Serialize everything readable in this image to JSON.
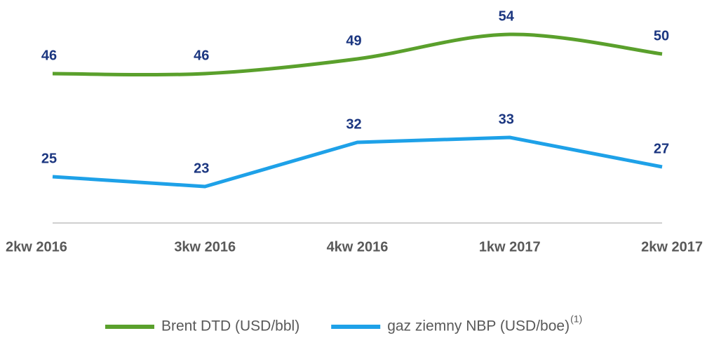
{
  "chart_data": {
    "type": "line",
    "categories": [
      "2kw 2016",
      "3kw 2016",
      "4kw 2016",
      "1kw 2017",
      "2kw 2017"
    ],
    "series": [
      {
        "name": "Brent DTD (USD/bbl)",
        "color": "#5aa02c",
        "smooth": true,
        "values": [
          46,
          46,
          49,
          54,
          50
        ]
      },
      {
        "name": "gaz ziemny NBP (USD/boe)",
        "footnote": "(1)",
        "color": "#1ea1e8",
        "smooth": false,
        "values": [
          25,
          23,
          32,
          33,
          27
        ]
      }
    ],
    "ylim": [
      0,
      60
    ],
    "grid": false,
    "legend": "bottom"
  }
}
